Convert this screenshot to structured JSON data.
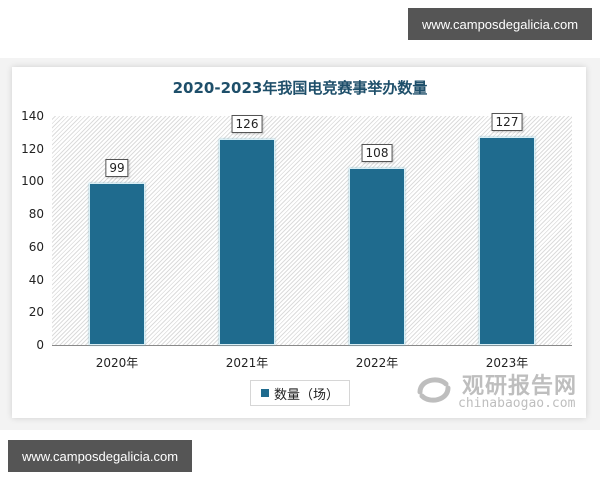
{
  "watermarks": {
    "top": "www.camposdegalicia.com",
    "bottom": "www.camposdegalicia.com"
  },
  "logo": {
    "cn": "观研报告网",
    "en": "chinabaogao.com"
  },
  "legend": {
    "label": "数量（场）"
  },
  "chart_data": {
    "type": "bar",
    "title": "2020-2023年我国电竞赛事举办数量",
    "categories": [
      "2020年",
      "2021年",
      "2022年",
      "2023年"
    ],
    "series": [
      {
        "name": "数量（场）",
        "values": [
          99,
          126,
          108,
          127
        ],
        "color": "#1f6b8e"
      }
    ],
    "values": [
      99,
      126,
      108,
      127
    ],
    "data_labels": [
      "99",
      "126",
      "108",
      "127"
    ],
    "xlabel": "",
    "ylabel": "",
    "ylim": [
      0,
      140
    ],
    "yticks": [
      "0",
      "20",
      "40",
      "60",
      "80",
      "100",
      "120",
      "140"
    ],
    "grid": false,
    "legend_position": "bottom"
  }
}
